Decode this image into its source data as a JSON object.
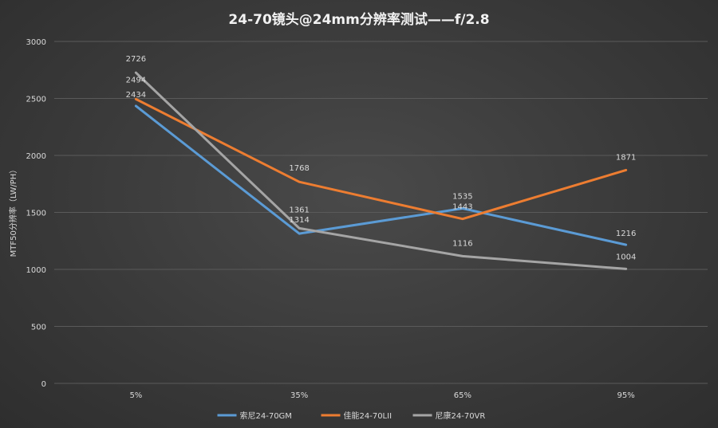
{
  "chart_data": {
    "type": "line",
    "title": "24-70镜头@24mm分辨率测试——f/2.8",
    "ylabel": "MTF50分辨率（LW/PH）",
    "xlabel": "",
    "categories": [
      "5%",
      "35%",
      "65%",
      "95%"
    ],
    "ylim": [
      0,
      3000
    ],
    "yticks": [
      0,
      500,
      1000,
      1500,
      2000,
      2500,
      3000
    ],
    "grid": true,
    "legend_position": "bottom",
    "series": [
      {
        "name": "索尼24-70GM",
        "color": "#5b9bd5",
        "values": [
          2434,
          1314,
          1535,
          1216
        ]
      },
      {
        "name": "佳能24-70LII",
        "color": "#ed7d31",
        "values": [
          2494,
          1768,
          1443,
          1871
        ]
      },
      {
        "name": "尼康24-70VR",
        "color": "#a5a5a5",
        "values": [
          2726,
          1361,
          1116,
          1004
        ]
      }
    ]
  }
}
